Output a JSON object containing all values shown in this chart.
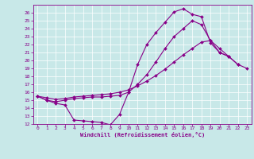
{
  "xlabel": "Windchill (Refroidissement éolien,°C)",
  "bg_color": "#c8e8e8",
  "grid_color": "#ffffff",
  "line_color": "#880088",
  "spine_color": "#880088",
  "xlim": [
    -0.5,
    23.5
  ],
  "ylim": [
    12,
    27
  ],
  "xticks": [
    0,
    1,
    2,
    3,
    4,
    5,
    6,
    7,
    8,
    9,
    10,
    11,
    12,
    13,
    14,
    15,
    16,
    17,
    18,
    19,
    20,
    21,
    22,
    23
  ],
  "yticks": [
    12,
    13,
    14,
    15,
    16,
    17,
    18,
    19,
    20,
    21,
    22,
    23,
    24,
    25,
    26
  ],
  "series": [
    {
      "x": [
        0,
        1,
        2,
        3,
        4,
        5,
        6,
        7,
        8,
        9,
        10,
        11,
        12,
        13,
        14,
        15,
        16,
        17,
        18,
        19,
        20,
        21,
        22
      ],
      "y": [
        15.5,
        15.0,
        14.6,
        14.4,
        12.5,
        12.4,
        12.3,
        12.2,
        11.9,
        13.2,
        16.0,
        19.5,
        22.0,
        23.5,
        24.8,
        26.1,
        26.5,
        25.8,
        25.5,
        22.2,
        21.0,
        20.5,
        19.5
      ]
    },
    {
      "x": [
        0,
        1,
        2,
        3,
        4,
        5,
        6,
        7,
        8,
        9,
        10,
        11,
        12,
        13,
        14,
        15,
        16,
        17,
        18,
        19,
        20,
        21
      ],
      "y": [
        15.5,
        15.0,
        14.8,
        15.0,
        15.2,
        15.3,
        15.4,
        15.4,
        15.5,
        15.6,
        16.0,
        17.0,
        18.2,
        19.8,
        21.5,
        23.0,
        24.0,
        25.0,
        24.5,
        22.5,
        21.0,
        20.5
      ]
    },
    {
      "x": [
        0,
        1,
        2,
        3,
        4,
        5,
        6,
        7,
        8,
        9,
        10,
        11,
        12,
        13,
        14,
        15,
        16,
        17,
        18,
        19,
        20,
        21,
        22,
        23
      ],
      "y": [
        15.5,
        15.3,
        15.1,
        15.2,
        15.4,
        15.5,
        15.6,
        15.7,
        15.8,
        16.0,
        16.3,
        16.8,
        17.4,
        18.1,
        18.9,
        19.8,
        20.7,
        21.5,
        22.3,
        22.5,
        21.5,
        20.5,
        19.5,
        19.0
      ]
    }
  ]
}
